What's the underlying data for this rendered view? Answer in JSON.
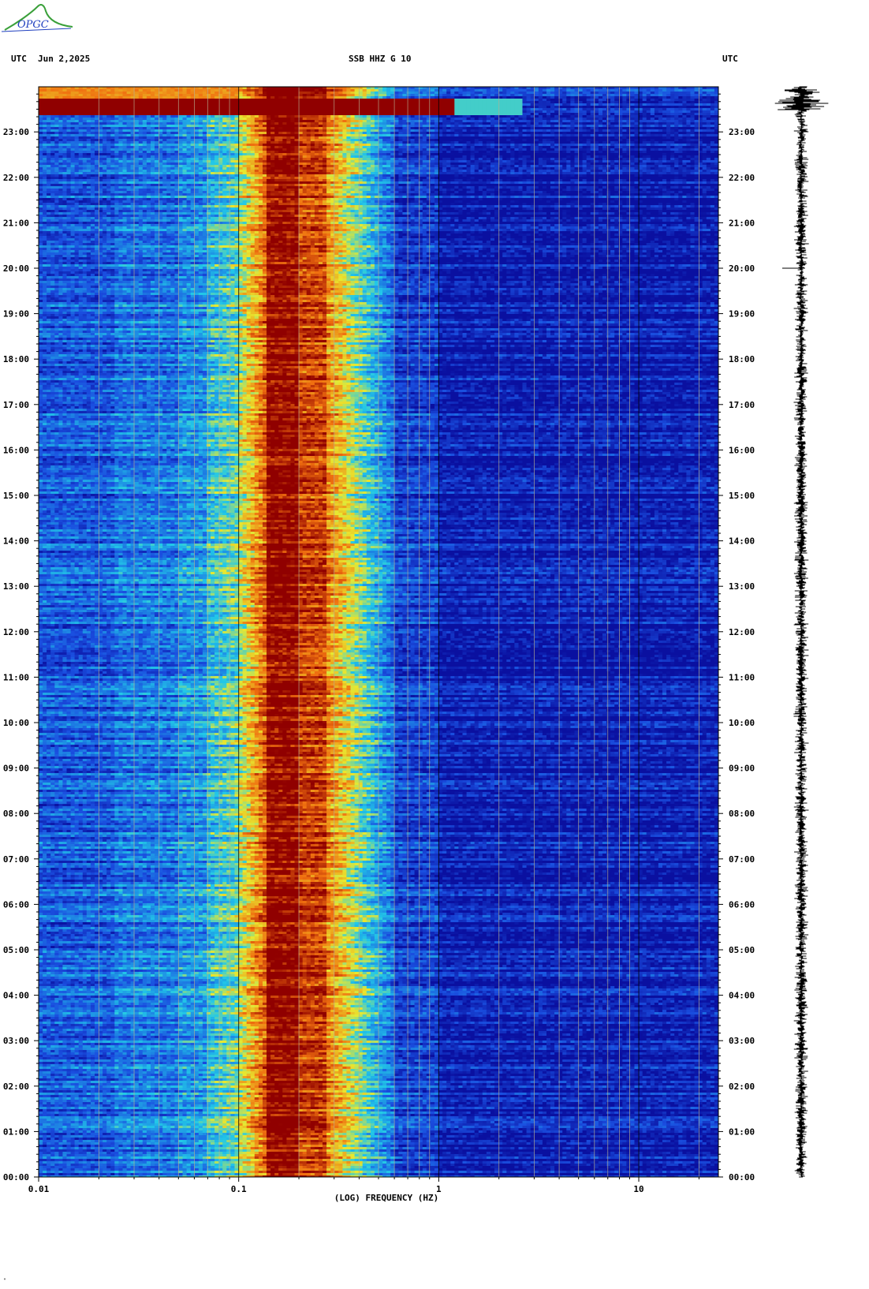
{
  "logo": {
    "text": "OPGC"
  },
  "header": {
    "left_utc": "UTC",
    "date": "Jun 2,2025",
    "station": "SSB HHZ G 10",
    "right_utc": "UTC"
  },
  "corner_mark": "\"",
  "colors": {
    "low": "#0a10a0",
    "mid_low": "#1a4fe0",
    "mid": "#22c8e8",
    "mid_high": "#e8e830",
    "high": "#f07010",
    "max": "#900000",
    "grid": "#b8b090",
    "trace": "#000000"
  },
  "chart_data": {
    "type": "heatmap",
    "title": "SSB HHZ G 10",
    "xlabel": "(LOG) FREQUENCY (HZ)",
    "ylabel": "",
    "x_scale": "log",
    "xlim": [
      0.01,
      25
    ],
    "x_ticks": [
      "0.01",
      "0.1",
      "1",
      "10"
    ],
    "y_ticks": [
      "00:00",
      "01:00",
      "02:00",
      "03:00",
      "04:00",
      "05:00",
      "06:00",
      "07:00",
      "08:00",
      "09:00",
      "10:00",
      "11:00",
      "12:00",
      "13:00",
      "14:00",
      "15:00",
      "16:00",
      "17:00",
      "18:00",
      "19:00",
      "20:00",
      "21:00",
      "22:00",
      "23:00"
    ],
    "ylim_hours": [
      0,
      24
    ],
    "primary_microseism_hz": [
      0.14,
      0.27
    ],
    "event_time_hours": 23.6,
    "legend": "none"
  }
}
